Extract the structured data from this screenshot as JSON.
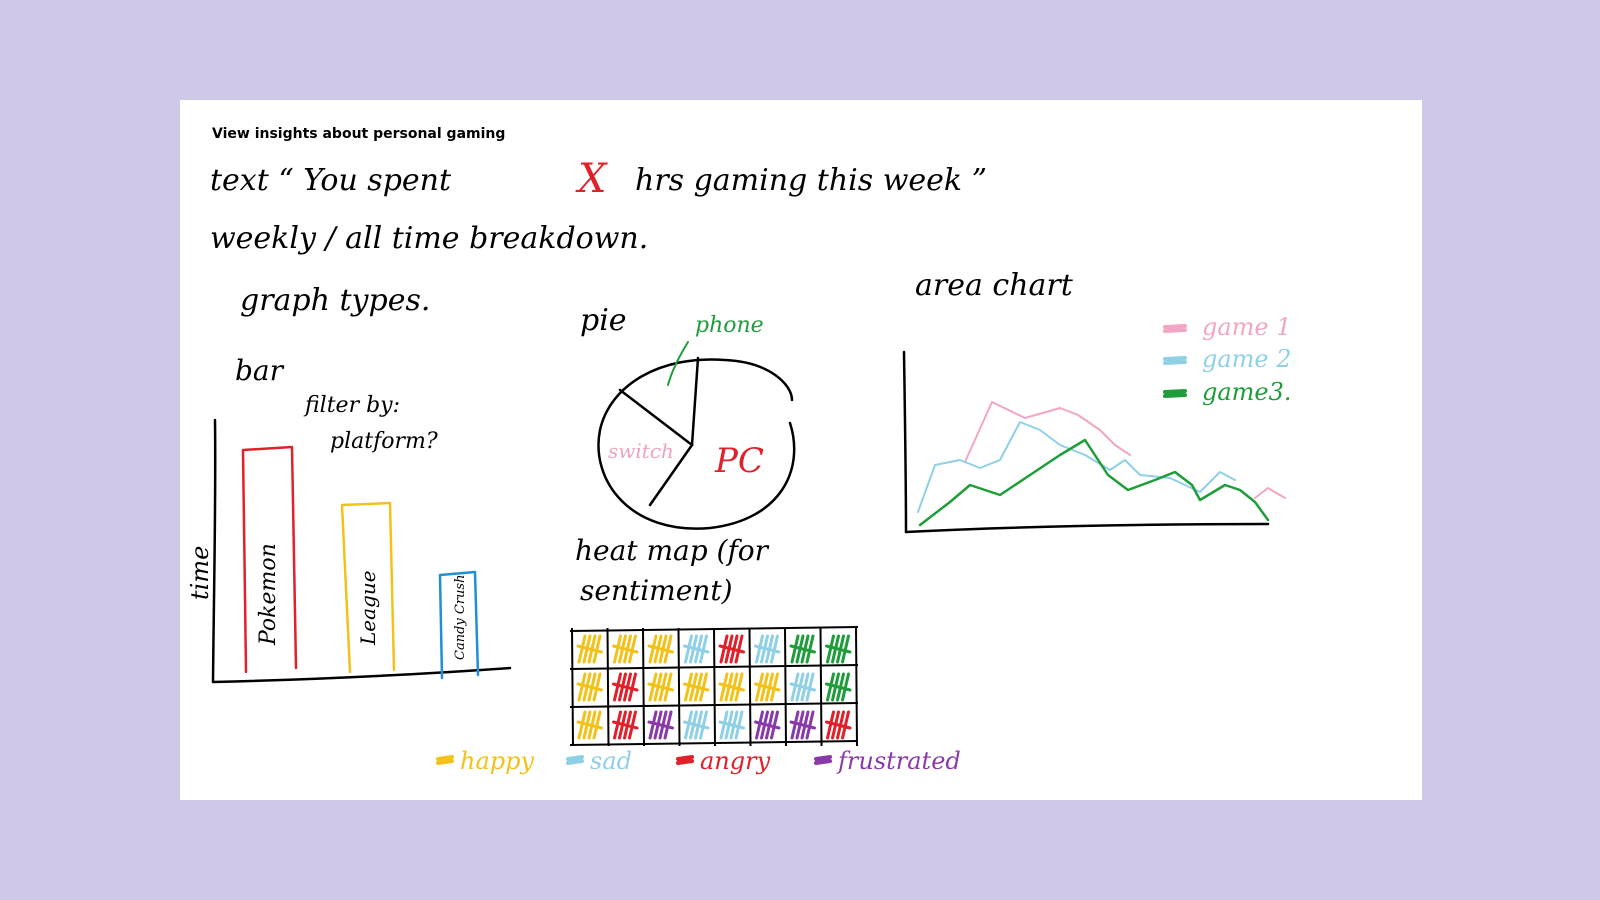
{
  "board_title": "View insights about personal gaming",
  "notes": {
    "line1_prefix": "text  “ You spent",
    "line1_x": "X",
    "line1_suffix": "hrs gaming this week ”",
    "line2": "weekly / all time breakdown.",
    "graph_types": "graph types."
  },
  "bar": {
    "heading": "bar",
    "filter_line1": "filter by:",
    "filter_line2": "platform?",
    "ylabel": "time",
    "bars": [
      {
        "label": "Pokemon",
        "color": "#e0202a"
      },
      {
        "label": "League",
        "color": "#f2c21b"
      },
      {
        "label": "Candy Crush",
        "color": "#1e90d6"
      }
    ]
  },
  "pie": {
    "heading": "pie",
    "slices": [
      {
        "label": "phone",
        "color": "#1f9d3a"
      },
      {
        "label": "switch",
        "color": "#f0a3bf"
      },
      {
        "label": "PC",
        "color": "#e0202a"
      }
    ]
  },
  "area": {
    "heading": "area chart",
    "legend": [
      {
        "label": "game 1",
        "color": "#f2a6c4"
      },
      {
        "label": "game 2",
        "color": "#8fd0e6"
      },
      {
        "label": "game3.",
        "color": "#1f9d3a"
      }
    ]
  },
  "heatmap": {
    "heading_line1": "heat map (for",
    "heading_line2": "sentiment)",
    "rows": [
      [
        "happy",
        "happy",
        "happy",
        "sad",
        "angry",
        "sad",
        "frustrated_green",
        "frustrated_green"
      ],
      [
        "happy",
        "angry",
        "happy",
        "happy",
        "happy",
        "happy",
        "sad",
        "green"
      ],
      [
        "happy",
        "angry",
        "frustrated",
        "sad",
        "sad",
        "frustrated",
        "frustrated",
        "angry"
      ]
    ],
    "cell_colors": {
      "happy": "#f2c21b",
      "sad": "#8fd0e6",
      "angry": "#e0202a",
      "frustrated": "#8a3aa8",
      "frustrated_green": "#1f9d3a",
      "green": "#1f9d3a"
    },
    "legend": [
      {
        "label": "happy",
        "color": "#f2c21b"
      },
      {
        "label": "sad",
        "color": "#8fd0e6"
      },
      {
        "label": "angry",
        "color": "#e0202a"
      },
      {
        "label": "frustrated",
        "color": "#8a3aa8"
      }
    ]
  }
}
